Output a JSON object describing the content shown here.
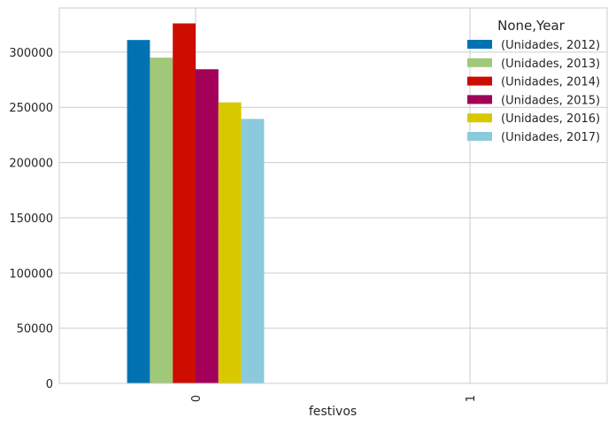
{
  "chart_data": {
    "type": "bar",
    "xlabel": "festivos",
    "ylabel": "",
    "categories": [
      "0",
      "1"
    ],
    "ylim": [
      0,
      340000
    ],
    "yticks": [
      0,
      50000,
      100000,
      150000,
      200000,
      250000,
      300000
    ],
    "ytick_labels": [
      "0",
      "50000",
      "100000",
      "150000",
      "200000",
      "250000",
      "300000"
    ],
    "grid": true,
    "legend": {
      "title": "None,Year",
      "placement": "top-right"
    },
    "series": [
      {
        "name": "(Unidades, 2012)",
        "color": "#0072B2",
        "values": [
          311000,
          0
        ]
      },
      {
        "name": "(Unidades, 2013)",
        "color": "#A1C779",
        "values": [
          295000,
          0
        ]
      },
      {
        "name": "(Unidades, 2014)",
        "color": "#CC0D00",
        "values": [
          326000,
          0
        ]
      },
      {
        "name": "(Unidades, 2015)",
        "color": "#A30059",
        "values": [
          284500,
          0
        ]
      },
      {
        "name": "(Unidades, 2016)",
        "color": "#D8C800",
        "values": [
          254500,
          0
        ]
      },
      {
        "name": "(Unidades, 2017)",
        "color": "#8BCADC",
        "values": [
          239500,
          0
        ]
      }
    ]
  }
}
